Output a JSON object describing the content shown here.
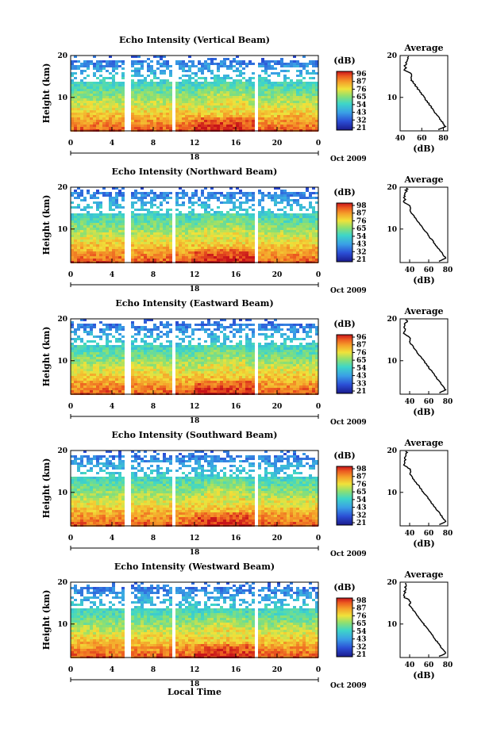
{
  "figure": {
    "bottom_label": "Local Time"
  },
  "chart_data": [
    {
      "type": "heatmap",
      "title": "Echo Intensity (Vertical Beam)",
      "ylabel": "Height (km)",
      "yticks": [
        "20",
        "10"
      ],
      "xticks": [
        "0",
        "4",
        "8",
        "12",
        "16",
        "20",
        "0"
      ],
      "date_day": "18",
      "date_label": "Oct 2009",
      "colorbar": {
        "unit": "(dB)",
        "ticks": [
          "96",
          "87",
          "76",
          "65",
          "54",
          "43",
          "32",
          "21"
        ]
      },
      "profile": {
        "title": "Average",
        "xlabel": "(dB)",
        "xticks": [
          "40",
          "60",
          "80"
        ],
        "yticks": [
          "20",
          "10"
        ],
        "xlim": [
          40,
          84
        ],
        "ylim": [
          2,
          20
        ]
      },
      "xlim": [
        0,
        24
      ],
      "ylim": [
        2,
        20
      ]
    },
    {
      "type": "heatmap",
      "title": "Echo Intensity (Northward Beam)",
      "ylabel": "Height (km)",
      "yticks": [
        "20",
        "10"
      ],
      "xticks": [
        "0",
        "4",
        "8",
        "12",
        "16",
        "20",
        "0"
      ],
      "date_day": "18",
      "date_label": "Oct 2009",
      "colorbar": {
        "unit": "(dB)",
        "ticks": [
          "98",
          "87",
          "76",
          "65",
          "54",
          "43",
          "32",
          "21"
        ]
      },
      "profile": {
        "title": "Average",
        "xlabel": "(dB)",
        "xticks": [
          "40",
          "60",
          "80"
        ],
        "yticks": [
          "20",
          "10"
        ],
        "xlim": [
          30,
          80
        ],
        "ylim": [
          2,
          20
        ]
      },
      "xlim": [
        0,
        24
      ],
      "ylim": [
        2,
        20
      ]
    },
    {
      "type": "heatmap",
      "title": "Echo Intensity (Eastward Beam)",
      "ylabel": "Height (km)",
      "yticks": [
        "20",
        "10"
      ],
      "xticks": [
        "0",
        "4",
        "8",
        "12",
        "16",
        "20",
        "0"
      ],
      "date_day": "18",
      "date_label": "Oct 2009",
      "colorbar": {
        "unit": "(dB)",
        "ticks": [
          "96",
          "87",
          "76",
          "65",
          "54",
          "43",
          "33",
          "21"
        ]
      },
      "profile": {
        "title": "Average",
        "xlabel": "(dB)",
        "xticks": [
          "40",
          "60",
          "80"
        ],
        "yticks": [
          "20",
          "10"
        ],
        "xlim": [
          30,
          80
        ],
        "ylim": [
          2,
          20
        ]
      },
      "xlim": [
        0,
        24
      ],
      "ylim": [
        2,
        20
      ]
    },
    {
      "type": "heatmap",
      "title": "Echo Intensity (Southward Beam)",
      "ylabel": "Height (km)",
      "yticks": [
        "20",
        "10"
      ],
      "xticks": [
        "0",
        "4",
        "8",
        "12",
        "16",
        "20",
        "0"
      ],
      "date_day": "18",
      "date_label": "Oct 2009",
      "colorbar": {
        "unit": "(dB)",
        "ticks": [
          "98",
          "87",
          "76",
          "65",
          "54",
          "43",
          "32",
          "21"
        ]
      },
      "profile": {
        "title": "Average",
        "xlabel": "(dB)",
        "xticks": [
          "40",
          "60",
          "80"
        ],
        "yticks": [
          "20",
          "10"
        ],
        "xlim": [
          30,
          80
        ],
        "ylim": [
          2,
          20
        ]
      },
      "xlim": [
        0,
        24
      ],
      "ylim": [
        2,
        20
      ]
    },
    {
      "type": "heatmap",
      "title": "Echo Intensity (Westward Beam)",
      "ylabel": "Height (km)",
      "yticks": [
        "20",
        "10"
      ],
      "xticks": [
        "0",
        "4",
        "8",
        "12",
        "16",
        "20",
        "0"
      ],
      "date_day": "18",
      "date_label": "Oct 2009",
      "colorbar": {
        "unit": "(dB)",
        "ticks": [
          "98",
          "87",
          "76",
          "65",
          "54",
          "43",
          "32",
          "21"
        ]
      },
      "profile": {
        "title": "Average",
        "xlabel": "(dB)",
        "xticks": [
          "40",
          "60",
          "80"
        ],
        "yticks": [
          "20",
          "10"
        ],
        "xlim": [
          30,
          80
        ],
        "ylim": [
          2,
          20
        ]
      },
      "xlim": [
        0,
        24
      ],
      "ylim": [
        2,
        20
      ]
    }
  ]
}
